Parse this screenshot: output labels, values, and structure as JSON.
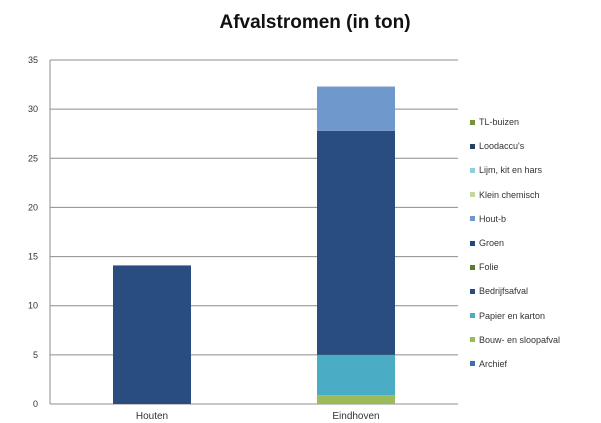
{
  "chart_data": {
    "type": "bar",
    "stacked": true,
    "title": "Afvalstromen (in ton)",
    "xlabel": "",
    "ylabel": "",
    "categories": [
      "Houten",
      "Eindhoven"
    ],
    "ylim": [
      0,
      35
    ],
    "yticks": [
      0,
      5,
      10,
      15,
      20,
      25,
      30,
      35
    ],
    "grid": true,
    "legend_position": "right",
    "series": [
      {
        "name": "Archief",
        "color": "#3d6fb0",
        "values": [
          0,
          0
        ]
      },
      {
        "name": "Bouw- en sloopafval",
        "color": "#9bbb59",
        "values": [
          0,
          0.9
        ]
      },
      {
        "name": "Papier en karton",
        "color": "#4bacc6",
        "values": [
          0,
          4.1
        ]
      },
      {
        "name": "Bedrijfsafval",
        "color": "#2a4d80",
        "values": [
          14.1,
          22.8
        ]
      },
      {
        "name": "Folie",
        "color": "#5e7a2e",
        "values": [
          0,
          0
        ]
      },
      {
        "name": "Groen",
        "color": "#1f497d",
        "values": [
          0,
          0
        ]
      },
      {
        "name": "Hout-b",
        "color": "#6f98cc",
        "values": [
          0,
          4.5
        ]
      },
      {
        "name": "Klein chemisch",
        "color": "#c3d69b",
        "values": [
          0,
          0
        ]
      },
      {
        "name": "Lijm, kit en hars",
        "color": "#93cddd",
        "values": [
          0,
          0
        ]
      },
      {
        "name": "Loodaccu's",
        "color": "#254061",
        "values": [
          0,
          0
        ]
      },
      {
        "name": "TL-buizen",
        "color": "#77933c",
        "values": [
          0,
          0
        ]
      }
    ]
  }
}
